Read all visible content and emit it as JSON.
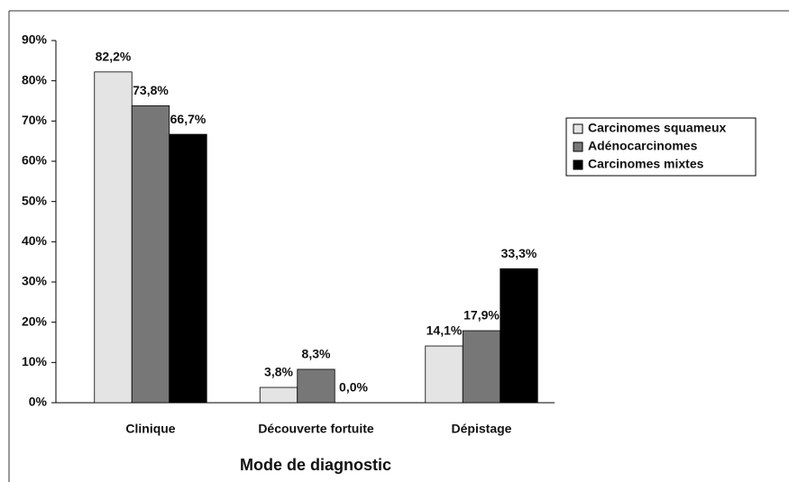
{
  "chart_data": {
    "type": "bar",
    "x_label": "Mode de diagnostic",
    "categories": [
      "Clinique",
      "Découverte fortuite",
      "Dépistage"
    ],
    "series": [
      {
        "name": "Carcinomes squameux",
        "color": "#e4e4e4",
        "values": [
          82.2,
          3.8,
          14.1
        ],
        "value_labels": [
          "82,2%",
          "3,8%",
          "14,1%"
        ]
      },
      {
        "name": "Adénocarcinomes",
        "color": "#777777",
        "values": [
          73.8,
          8.3,
          17.9
        ],
        "value_labels": [
          "73,8%",
          "8,3%",
          "17,9%"
        ]
      },
      {
        "name": "Carcinomes mixtes",
        "color": "#000000",
        "values": [
          66.7,
          0.0,
          33.3
        ],
        "value_labels": [
          "66,7%",
          "0,0%",
          "33,3%"
        ]
      }
    ],
    "ylim": [
      0,
      90
    ],
    "yticks": [
      {
        "value": 0,
        "label": "0%"
      },
      {
        "value": 10,
        "label": "10%"
      },
      {
        "value": 20,
        "label": "20%"
      },
      {
        "value": 30,
        "label": "30%"
      },
      {
        "value": 40,
        "label": "40%"
      },
      {
        "value": 50,
        "label": "50%"
      },
      {
        "value": 60,
        "label": "60%"
      },
      {
        "value": 70,
        "label": "70%"
      },
      {
        "value": 80,
        "label": "80%"
      },
      {
        "value": 90,
        "label": "90%"
      }
    ],
    "grid": false,
    "legend": "right"
  }
}
